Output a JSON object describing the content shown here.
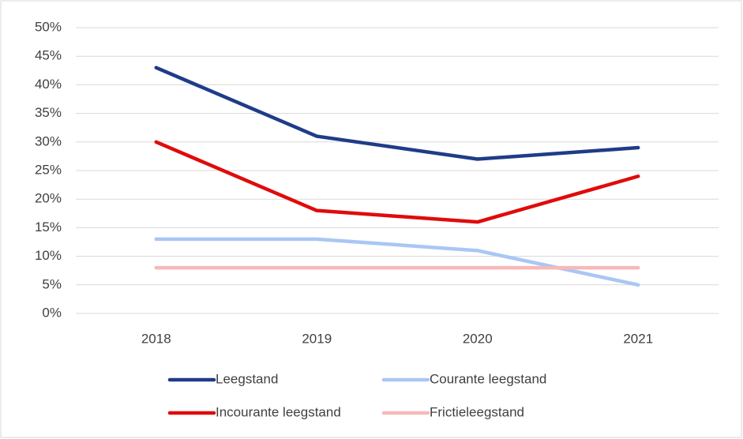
{
  "chart_data": {
    "type": "line",
    "categories": [
      "2018",
      "2019",
      "2020",
      "2021"
    ],
    "series": [
      {
        "name": "Leegstand",
        "color": "#1f3c88",
        "values": [
          43,
          31,
          27,
          29
        ]
      },
      {
        "name": "Courante leegstand",
        "color": "#a9c7f4",
        "values": [
          13,
          13,
          11,
          5
        ]
      },
      {
        "name": "Incourante leegstand",
        "color": "#e00b0b",
        "values": [
          30,
          18,
          16,
          24
        ]
      },
      {
        "name": "Frictieleegstand",
        "color": "#f8b9b9",
        "values": [
          8,
          8,
          8,
          8
        ]
      }
    ],
    "ylim": [
      0,
      50
    ],
    "yticks": [
      {
        "value": 0,
        "label": "0%"
      },
      {
        "value": 5,
        "label": "5%"
      },
      {
        "value": 10,
        "label": "10%"
      },
      {
        "value": 15,
        "label": "15%"
      },
      {
        "value": 20,
        "label": "20%"
      },
      {
        "value": 25,
        "label": "25%"
      },
      {
        "value": 30,
        "label": "30%"
      },
      {
        "value": 35,
        "label": "35%"
      },
      {
        "value": 40,
        "label": "40%"
      },
      {
        "value": 45,
        "label": "45%"
      },
      {
        "value": 50,
        "label": "50%"
      }
    ],
    "grid": true,
    "legend": "bottom"
  }
}
